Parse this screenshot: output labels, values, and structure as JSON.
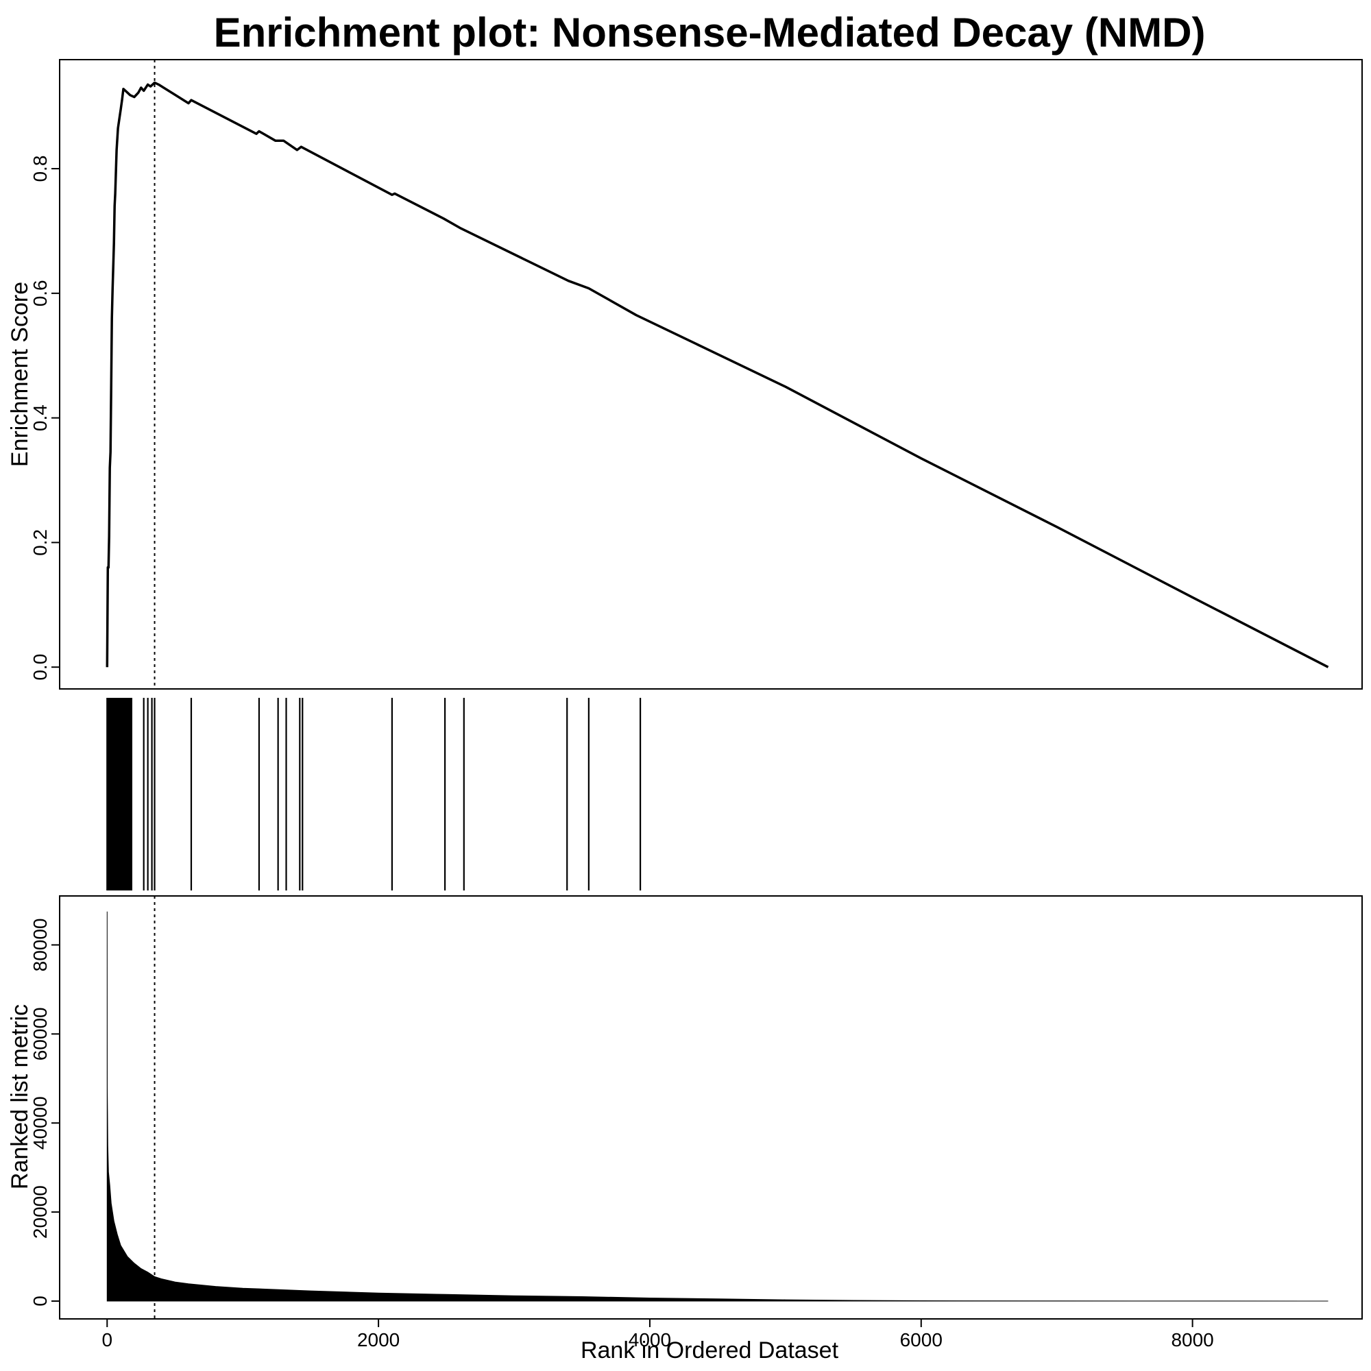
{
  "chart_data": [
    {
      "type": "line",
      "panel": "enrichment-score",
      "title": "Enrichment plot: Nonsense-Mediated Decay (NMD)",
      "xlabel": "",
      "ylabel": "Enrichment Score",
      "xlim": [
        -350,
        9250
      ],
      "ylim": [
        -0.035,
        0.975
      ],
      "yticks": [
        0.0,
        0.2,
        0.4,
        0.6,
        0.8
      ],
      "ytick_labels": [
        "0.0",
        "0.2",
        "0.4",
        "0.6",
        "0.8"
      ],
      "max_es_rank": 350,
      "x": [
        0,
        5,
        10,
        15,
        20,
        25,
        30,
        35,
        40,
        50,
        55,
        60,
        70,
        80,
        90,
        100,
        110,
        120,
        130,
        150,
        170,
        200,
        230,
        250,
        270,
        300,
        320,
        350,
        380,
        600,
        620,
        1100,
        1120,
        1240,
        1300,
        1400,
        1430,
        2100,
        2120,
        2480,
        2600,
        3400,
        3550,
        3900,
        5000,
        6000,
        7000,
        8000,
        9000
      ],
      "y": [
        0.0,
        0.16,
        0.16,
        0.21,
        0.32,
        0.345,
        0.45,
        0.56,
        0.605,
        0.68,
        0.74,
        0.76,
        0.83,
        0.865,
        0.88,
        0.895,
        0.91,
        0.928,
        0.926,
        0.922,
        0.918,
        0.915,
        0.922,
        0.93,
        0.925,
        0.935,
        0.932,
        0.938,
        0.935,
        0.905,
        0.91,
        0.856,
        0.86,
        0.845,
        0.845,
        0.83,
        0.835,
        0.758,
        0.76,
        0.72,
        0.705,
        0.62,
        0.608,
        0.565,
        0.45,
        0.335,
        0.225,
        0.112,
        0.0
      ]
    },
    {
      "type": "rug",
      "panel": "hit-positions",
      "positions": [
        0,
        5,
        10,
        15,
        20,
        25,
        30,
        35,
        40,
        45,
        50,
        55,
        60,
        65,
        70,
        75,
        80,
        85,
        90,
        95,
        100,
        110,
        120,
        130,
        140,
        150,
        160,
        170,
        180,
        270,
        300,
        330,
        350,
        620,
        1120,
        1260,
        1320,
        1420,
        1440,
        2100,
        2490,
        2630,
        3390,
        3550,
        3930
      ]
    },
    {
      "type": "area",
      "panel": "ranked-metric",
      "xlabel": "Rank in Ordered Dataset",
      "ylabel": "Ranked list metric",
      "xlim": [
        -350,
        9250
      ],
      "ylim": [
        -4000,
        91000
      ],
      "xticks": [
        0,
        2000,
        4000,
        6000,
        8000
      ],
      "xtick_labels": [
        "0",
        "2000",
        "4000",
        "6000",
        "8000"
      ],
      "yticks": [
        0,
        20000,
        40000,
        60000,
        80000
      ],
      "ytick_labels": [
        "0",
        "20000",
        "40000",
        "60000",
        "80000"
      ],
      "x": [
        0,
        1,
        3,
        5,
        10,
        20,
        30,
        50,
        75,
        100,
        150,
        200,
        250,
        300,
        350,
        400,
        500,
        600,
        800,
        1000,
        1500,
        2000,
        2500,
        3000,
        3500,
        4000,
        4500,
        5000,
        5500,
        6000,
        7000,
        8000,
        9000
      ],
      "y": [
        87500,
        48000,
        42000,
        35000,
        29000,
        26000,
        22000,
        18000,
        15000,
        12500,
        10000,
        8500,
        7300,
        6500,
        5500,
        5000,
        4300,
        3900,
        3300,
        2900,
        2300,
        1800,
        1500,
        1200,
        1000,
        700,
        500,
        300,
        150,
        80,
        40,
        20,
        0
      ]
    }
  ]
}
